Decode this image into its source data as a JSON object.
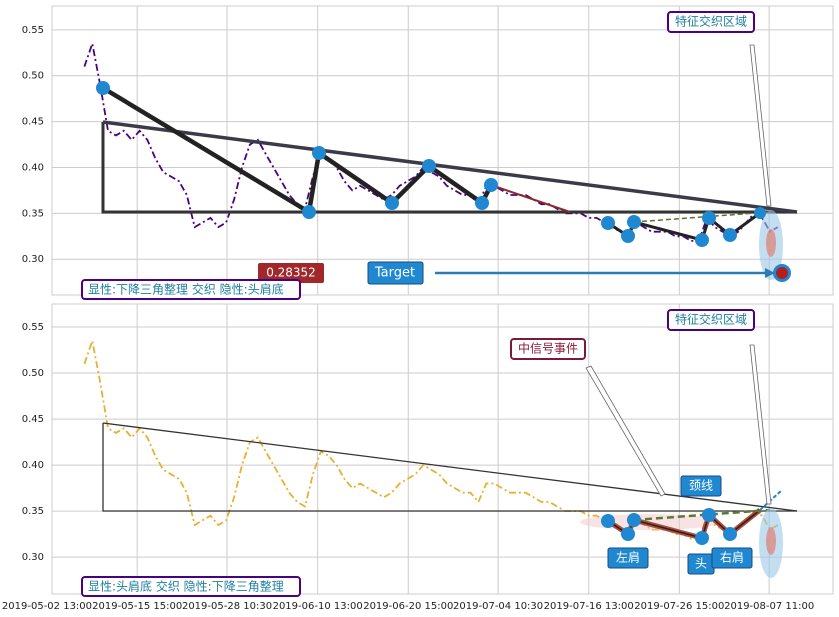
{
  "chart_data": [
    {
      "type": "line",
      "series": [
        {
          "color": "#4b0082",
          "values": [
            0.51,
            0.535,
            0.49,
            0.44,
            0.435,
            0.44,
            0.43,
            0.44,
            0.43,
            0.41,
            0.395,
            0.39,
            0.385,
            0.37,
            0.335,
            0.34,
            0.345,
            0.335,
            0.34,
            0.365,
            0.4,
            0.425,
            0.43,
            0.415,
            0.4,
            0.385,
            0.37,
            0.36,
            0.355,
            0.39,
            0.415,
            0.41,
            0.4,
            0.385,
            0.375,
            0.38,
            0.375,
            0.37,
            0.365,
            0.37,
            0.38,
            0.385,
            0.39,
            0.4,
            0.395,
            0.39,
            0.38,
            0.375,
            0.37,
            0.37,
            0.36,
            0.38,
            0.38,
            0.375,
            0.37,
            0.37,
            0.37,
            0.365,
            0.36,
            0.36,
            0.355,
            0.35,
            0.35,
            0.35,
            0.345,
            0.345,
            0.34,
            0.335,
            0.33,
            0.325,
            0.34,
            0.335,
            0.33,
            0.33,
            0.33,
            0.325,
            0.325,
            0.32,
            0.32,
            0.345,
            0.335,
            0.33,
            0.325,
            0.33,
            0.34,
            0.35,
            0.345,
            0.33,
            0.335
          ]
        }
      ],
      "xlim": [
        -5,
        95
      ],
      "ylim": [
        0.261,
        0.576
      ],
      "yticks": [
        {
          "value": 0.3,
          "label": "0.30"
        },
        0.35,
        {
          "value": 0.4,
          "label": "0.40"
        },
        0.45,
        {
          "value": 0.5,
          "label": "0.50"
        },
        0.55
      ],
      "grid": true,
      "annotations": [
        "特征交织区域",
        "0.28352",
        "Target",
        "显性:下降三角整理 交织 隐性:头肩底"
      ]
    },
    {
      "type": "line",
      "series": [
        {
          "color": "#e8b030",
          "values": [
            0.51,
            0.535,
            0.49,
            0.44,
            0.435,
            0.44,
            0.43,
            0.44,
            0.43,
            0.41,
            0.395,
            0.39,
            0.385,
            0.37,
            0.335,
            0.34,
            0.345,
            0.335,
            0.34,
            0.365,
            0.4,
            0.425,
            0.43,
            0.415,
            0.4,
            0.385,
            0.37,
            0.36,
            0.355,
            0.39,
            0.415,
            0.41,
            0.4,
            0.385,
            0.375,
            0.38,
            0.375,
            0.37,
            0.365,
            0.37,
            0.38,
            0.385,
            0.39,
            0.4,
            0.395,
            0.39,
            0.38,
            0.375,
            0.37,
            0.37,
            0.36,
            0.38,
            0.38,
            0.375,
            0.37,
            0.37,
            0.37,
            0.365,
            0.36,
            0.36,
            0.355,
            0.35,
            0.35,
            0.35,
            0.345,
            0.345,
            0.34,
            0.335,
            0.33,
            0.325,
            0.34,
            0.335,
            0.33,
            0.33,
            0.33,
            0.325,
            0.325,
            0.32,
            0.32,
            0.345,
            0.335,
            0.33,
            0.325,
            0.33,
            0.34,
            0.35,
            0.345,
            0.33,
            0.335
          ]
        }
      ],
      "xlim": [
        -5,
        95
      ],
      "ylim": [
        0.26,
        0.575
      ],
      "yticks": [
        {
          "value": 0.3,
          "label": "0.30"
        },
        0.35,
        {
          "value": 0.4,
          "label": "0.40"
        },
        0.45,
        {
          "value": 0.5,
          "label": "0.50"
        },
        0.55
      ],
      "xticks": [
        {
          "value": -4.75,
          "label": "2019-05-02 13:00"
        },
        {
          "value": 6.7,
          "label": "2019-05-15 15:00"
        },
        {
          "value": 18.1,
          "label": "2019-05-28 10:30"
        },
        {
          "value": 29.6,
          "label": "2019-06-10 13:00"
        },
        {
          "value": 41.1,
          "label": "2019-06-20 15:00"
        },
        {
          "value": 52.5,
          "label": "2019-07-04 10:30"
        },
        {
          "value": 64.0,
          "label": "2019-07-16 13:00"
        },
        {
          "value": 75.5,
          "label": "2019-07-26 15:00"
        },
        {
          "value": 86.9,
          "label": "2019-08-07 11:00"
        }
      ],
      "grid": true,
      "annotations": [
        "特征交织区域",
        "中信号事件",
        "颈线",
        "左肩",
        "头",
        "右肩",
        "显性:头肩底 交织 隐性:下降三角整理"
      ]
    }
  ]
}
